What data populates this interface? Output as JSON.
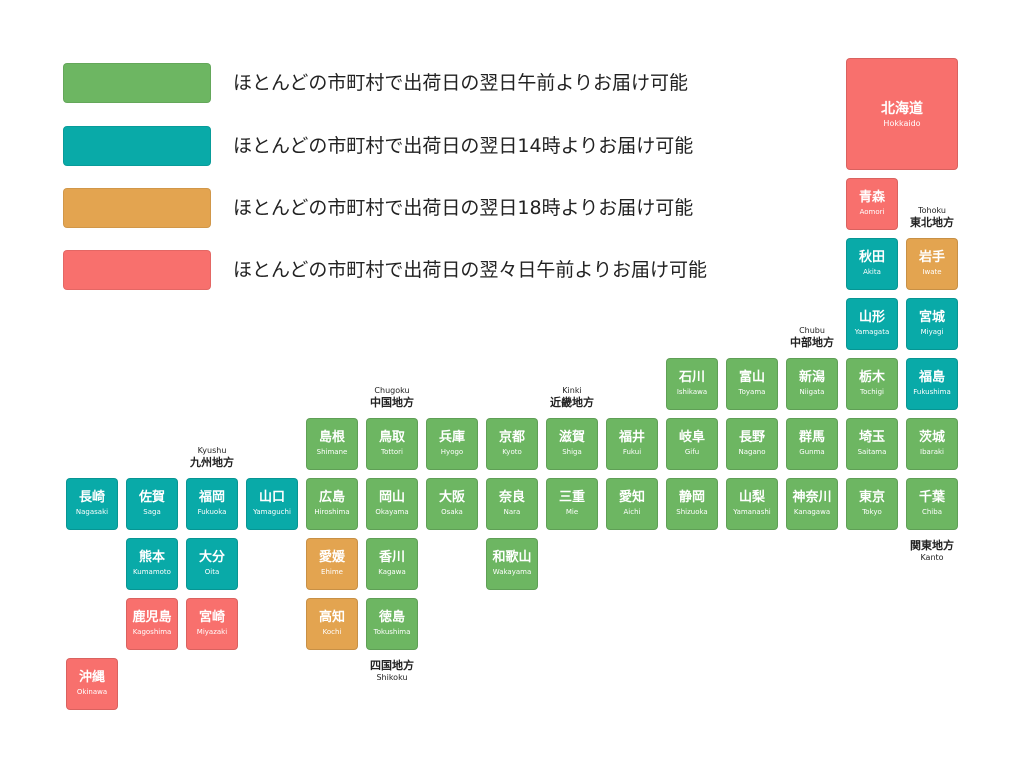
{
  "colors": {
    "next_day_am": "#6db662",
    "next_day_14": "#09aaa8",
    "next_day_18": "#e3a450",
    "two_days_am": "#f8706d"
  },
  "legend": [
    {
      "key": "next_day_am",
      "text": "ほとんどの市町村で出荷日の翌日午前よりお届け可能"
    },
    {
      "key": "next_day_14",
      "text": "ほとんどの市町村で出荷日の翌日14時よりお届け可能"
    },
    {
      "key": "next_day_18",
      "text": "ほとんどの市町村で出荷日の翌日18時よりお届け可能"
    },
    {
      "key": "two_days_am",
      "text": "ほとんどの市町村で出荷日の翌々日午前よりお届け可能"
    }
  ],
  "regions": [
    {
      "id": "tohoku",
      "en": "Tohoku",
      "ja": "東北地方",
      "en_first": true
    },
    {
      "id": "chubu",
      "en": "Chubu",
      "ja": "中部地方",
      "en_first": true
    },
    {
      "id": "chugoku",
      "en": "Chugoku",
      "ja": "中国地方",
      "en_first": true
    },
    {
      "id": "kinki",
      "en": "Kinki",
      "ja": "近畿地方",
      "en_first": true
    },
    {
      "id": "kyushu",
      "en": "Kyushu",
      "ja": "九州地方",
      "en_first": true
    },
    {
      "id": "kanto",
      "en": "Kanto",
      "ja": "関東地方",
      "en_first": false
    },
    {
      "id": "shikoku",
      "en": "Shikoku",
      "ja": "四国地方",
      "en_first": false
    }
  ],
  "prefectures": [
    {
      "id": "hokkaido",
      "ja": "北海道",
      "en": "Hokkaido",
      "level": "two_days_am"
    },
    {
      "id": "aomori",
      "ja": "青森",
      "en": "Aomori",
      "level": "two_days_am"
    },
    {
      "id": "akita",
      "ja": "秋田",
      "en": "Akita",
      "level": "next_day_14"
    },
    {
      "id": "iwate",
      "ja": "岩手",
      "en": "Iwate",
      "level": "next_day_18"
    },
    {
      "id": "yamagata",
      "ja": "山形",
      "en": "Yamagata",
      "level": "next_day_14"
    },
    {
      "id": "miyagi",
      "ja": "宮城",
      "en": "Miyagi",
      "level": "next_day_14"
    },
    {
      "id": "ishikawa",
      "ja": "石川",
      "en": "Ishikawa",
      "level": "next_day_am"
    },
    {
      "id": "toyama",
      "ja": "富山",
      "en": "Toyama",
      "level": "next_day_am"
    },
    {
      "id": "niigata",
      "ja": "新潟",
      "en": "Niigata",
      "level": "next_day_am"
    },
    {
      "id": "tochigi",
      "ja": "栃木",
      "en": "Tochigi",
      "level": "next_day_am"
    },
    {
      "id": "fukushima",
      "ja": "福島",
      "en": "Fukushima",
      "level": "next_day_14"
    },
    {
      "id": "shimane",
      "ja": "島根",
      "en": "Shimane",
      "level": "next_day_am"
    },
    {
      "id": "tottori",
      "ja": "鳥取",
      "en": "Tottori",
      "level": "next_day_am"
    },
    {
      "id": "hyogo",
      "ja": "兵庫",
      "en": "Hyogo",
      "level": "next_day_am"
    },
    {
      "id": "kyoto",
      "ja": "京都",
      "en": "Kyoto",
      "level": "next_day_am"
    },
    {
      "id": "shiga",
      "ja": "滋賀",
      "en": "Shiga",
      "level": "next_day_am"
    },
    {
      "id": "fukui",
      "ja": "福井",
      "en": "Fukui",
      "level": "next_day_am"
    },
    {
      "id": "gifu",
      "ja": "岐阜",
      "en": "Gifu",
      "level": "next_day_am"
    },
    {
      "id": "nagano",
      "ja": "長野",
      "en": "Nagano",
      "level": "next_day_am"
    },
    {
      "id": "gunma",
      "ja": "群馬",
      "en": "Gunma",
      "level": "next_day_am"
    },
    {
      "id": "saitama",
      "ja": "埼玉",
      "en": "Saitama",
      "level": "next_day_am"
    },
    {
      "id": "ibaraki",
      "ja": "茨城",
      "en": "Ibaraki",
      "level": "next_day_am"
    },
    {
      "id": "nagasaki",
      "ja": "長崎",
      "en": "Nagasaki",
      "level": "next_day_14"
    },
    {
      "id": "saga",
      "ja": "佐賀",
      "en": "Saga",
      "level": "next_day_14"
    },
    {
      "id": "fukuoka",
      "ja": "福岡",
      "en": "Fukuoka",
      "level": "next_day_14"
    },
    {
      "id": "yamaguchi",
      "ja": "山口",
      "en": "Yamaguchi",
      "level": "next_day_14"
    },
    {
      "id": "hiroshima",
      "ja": "広島",
      "en": "Hiroshima",
      "level": "next_day_am"
    },
    {
      "id": "okayama",
      "ja": "岡山",
      "en": "Okayama",
      "level": "next_day_am"
    },
    {
      "id": "osaka",
      "ja": "大阪",
      "en": "Osaka",
      "level": "next_day_am"
    },
    {
      "id": "nara",
      "ja": "奈良",
      "en": "Nara",
      "level": "next_day_am"
    },
    {
      "id": "mie",
      "ja": "三重",
      "en": "Mie",
      "level": "next_day_am"
    },
    {
      "id": "aichi",
      "ja": "愛知",
      "en": "Aichi",
      "level": "next_day_am"
    },
    {
      "id": "shizuoka",
      "ja": "静岡",
      "en": "Shizuoka",
      "level": "next_day_am"
    },
    {
      "id": "yamanashi",
      "ja": "山梨",
      "en": "Yamanashi",
      "level": "next_day_am"
    },
    {
      "id": "kanagawa",
      "ja": "神奈川",
      "en": "Kanagawa",
      "level": "next_day_am"
    },
    {
      "id": "tokyo",
      "ja": "東京",
      "en": "Tokyo",
      "level": "next_day_am"
    },
    {
      "id": "chiba",
      "ja": "千葉",
      "en": "Chiba",
      "level": "next_day_am"
    },
    {
      "id": "kumamoto",
      "ja": "熊本",
      "en": "Kumamoto",
      "level": "next_day_14"
    },
    {
      "id": "oita",
      "ja": "大分",
      "en": "Oita",
      "level": "next_day_14"
    },
    {
      "id": "ehime",
      "ja": "愛媛",
      "en": "Ehime",
      "level": "next_day_18"
    },
    {
      "id": "kagawa",
      "ja": "香川",
      "en": "Kagawa",
      "level": "next_day_am"
    },
    {
      "id": "wakayama",
      "ja": "和歌山",
      "en": "Wakayama",
      "level": "next_day_am"
    },
    {
      "id": "kagoshima",
      "ja": "鹿児島",
      "en": "Kagoshima",
      "level": "two_days_am"
    },
    {
      "id": "miyazaki",
      "ja": "宮崎",
      "en": "Miyazaki",
      "level": "two_days_am"
    },
    {
      "id": "kochi",
      "ja": "高知",
      "en": "Kochi",
      "level": "next_day_18"
    },
    {
      "id": "tokushima",
      "ja": "徳島",
      "en": "Tokushima",
      "level": "next_day_am"
    },
    {
      "id": "okinawa",
      "ja": "沖縄",
      "en": "Okinawa",
      "level": "two_days_am"
    }
  ]
}
